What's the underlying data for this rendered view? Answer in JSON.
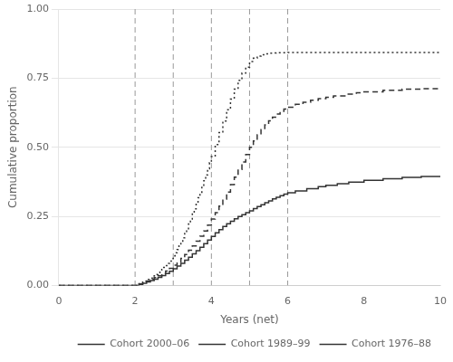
{
  "chart_data": {
    "type": "line",
    "xlabel": "Years (net)",
    "ylabel": "Cumulative proportion",
    "xlim": [
      0,
      10
    ],
    "ylim": [
      0,
      1.0
    ],
    "xticks": [
      0,
      2,
      4,
      6,
      8,
      10
    ],
    "yticks": [
      {
        "value": 0.0,
        "label": "0.00"
      },
      {
        "value": 0.25,
        "label": "0.25"
      },
      {
        "value": 0.5,
        "label": "0.50"
      },
      {
        "value": 0.75,
        "label": "0.75"
      },
      {
        "value": 1.0,
        "label": "1.00"
      }
    ],
    "grid": "y",
    "legend": "lower right",
    "vlines": {
      "values": [
        2,
        3,
        4,
        5,
        6
      ],
      "color": "#999999",
      "line_style": "dashed"
    },
    "series": [
      {
        "name": "Cohort 2000–06",
        "line_style": "dotted",
        "color": "#333333",
        "x": [
          0,
          2.0,
          2.05,
          2.1,
          2.15,
          2.2,
          2.25,
          2.3,
          2.35,
          2.4,
          2.45,
          2.5,
          2.55,
          2.6,
          2.65,
          2.7,
          2.75,
          2.8,
          2.85,
          2.9,
          2.95,
          3.0,
          3.05,
          3.1,
          3.15,
          3.2,
          3.25,
          3.3,
          3.35,
          3.4,
          3.45,
          3.5,
          3.55,
          3.6,
          3.65,
          3.7,
          3.75,
          3.8,
          3.85,
          3.9,
          3.95,
          4.0,
          4.1,
          4.2,
          4.3,
          4.4,
          4.5,
          4.6,
          4.7,
          4.8,
          4.9,
          5.0,
          5.1,
          5.2,
          5.3,
          5.4,
          5.5,
          5.6,
          5.7,
          5.8,
          6.0,
          7.0,
          8.0,
          9.0,
          10.0
        ],
        "values": [
          0.0,
          0.0,
          0.003,
          0.006,
          0.009,
          0.012,
          0.015,
          0.018,
          0.022,
          0.026,
          0.03,
          0.035,
          0.04,
          0.046,
          0.052,
          0.058,
          0.065,
          0.072,
          0.08,
          0.088,
          0.097,
          0.107,
          0.118,
          0.13,
          0.143,
          0.157,
          0.172,
          0.188,
          0.205,
          0.222,
          0.24,
          0.258,
          0.277,
          0.297,
          0.317,
          0.337,
          0.358,
          0.379,
          0.4,
          0.422,
          0.444,
          0.466,
          0.51,
          0.553,
          0.595,
          0.636,
          0.674,
          0.71,
          0.742,
          0.768,
          0.79,
          0.81,
          0.822,
          0.83,
          0.835,
          0.838,
          0.84,
          0.841,
          0.842,
          0.842,
          0.843,
          0.843,
          0.843,
          0.843,
          0.843
        ]
      },
      {
        "name": "Cohort 1989–99",
        "line_style": "dashed",
        "color": "#333333",
        "x": [
          0,
          2.0,
          2.1,
          2.2,
          2.3,
          2.4,
          2.5,
          2.6,
          2.7,
          2.8,
          2.9,
          3.0,
          3.1,
          3.2,
          3.3,
          3.4,
          3.5,
          3.6,
          3.7,
          3.8,
          3.9,
          4.0,
          4.1,
          4.2,
          4.3,
          4.4,
          4.5,
          4.6,
          4.7,
          4.8,
          4.9,
          5.0,
          5.1,
          5.2,
          5.3,
          5.4,
          5.5,
          5.6,
          5.7,
          5.8,
          5.9,
          6.0,
          6.2,
          6.4,
          6.6,
          6.8,
          7.0,
          7.2,
          7.5,
          7.8,
          8.0,
          8.5,
          9.0,
          9.5,
          10.0
        ],
        "values": [
          0.0,
          0.0,
          0.005,
          0.01,
          0.016,
          0.022,
          0.028,
          0.035,
          0.043,
          0.052,
          0.062,
          0.073,
          0.085,
          0.098,
          0.112,
          0.127,
          0.143,
          0.16,
          0.178,
          0.197,
          0.218,
          0.24,
          0.263,
          0.287,
          0.312,
          0.338,
          0.365,
          0.392,
          0.42,
          0.447,
          0.474,
          0.5,
          0.523,
          0.545,
          0.564,
          0.581,
          0.596,
          0.609,
          0.62,
          0.63,
          0.638,
          0.645,
          0.655,
          0.663,
          0.67,
          0.676,
          0.681,
          0.686,
          0.692,
          0.697,
          0.7,
          0.706,
          0.71,
          0.712,
          0.715
        ]
      },
      {
        "name": "Cohort 1976–88",
        "line_style": "solid",
        "color": "#333333",
        "x": [
          0,
          2.0,
          2.1,
          2.2,
          2.3,
          2.4,
          2.5,
          2.6,
          2.7,
          2.8,
          2.9,
          3.0,
          3.1,
          3.2,
          3.3,
          3.4,
          3.5,
          3.6,
          3.7,
          3.8,
          3.9,
          4.0,
          4.1,
          4.2,
          4.3,
          4.4,
          4.5,
          4.6,
          4.7,
          4.8,
          4.9,
          5.0,
          5.1,
          5.2,
          5.3,
          5.4,
          5.5,
          5.6,
          5.7,
          5.8,
          5.9,
          6.0,
          6.2,
          6.5,
          6.8,
          7.0,
          7.3,
          7.6,
          8.0,
          8.5,
          9.0,
          9.5,
          10.0
        ],
        "values": [
          0.0,
          0.0,
          0.004,
          0.008,
          0.013,
          0.018,
          0.023,
          0.029,
          0.036,
          0.043,
          0.051,
          0.06,
          0.07,
          0.08,
          0.091,
          0.102,
          0.114,
          0.126,
          0.138,
          0.151,
          0.164,
          0.177,
          0.19,
          0.202,
          0.213,
          0.223,
          0.232,
          0.241,
          0.249,
          0.256,
          0.263,
          0.27,
          0.278,
          0.285,
          0.292,
          0.299,
          0.306,
          0.313,
          0.319,
          0.325,
          0.33,
          0.335,
          0.342,
          0.35,
          0.357,
          0.362,
          0.368,
          0.374,
          0.38,
          0.386,
          0.391,
          0.394,
          0.397
        ]
      }
    ]
  }
}
